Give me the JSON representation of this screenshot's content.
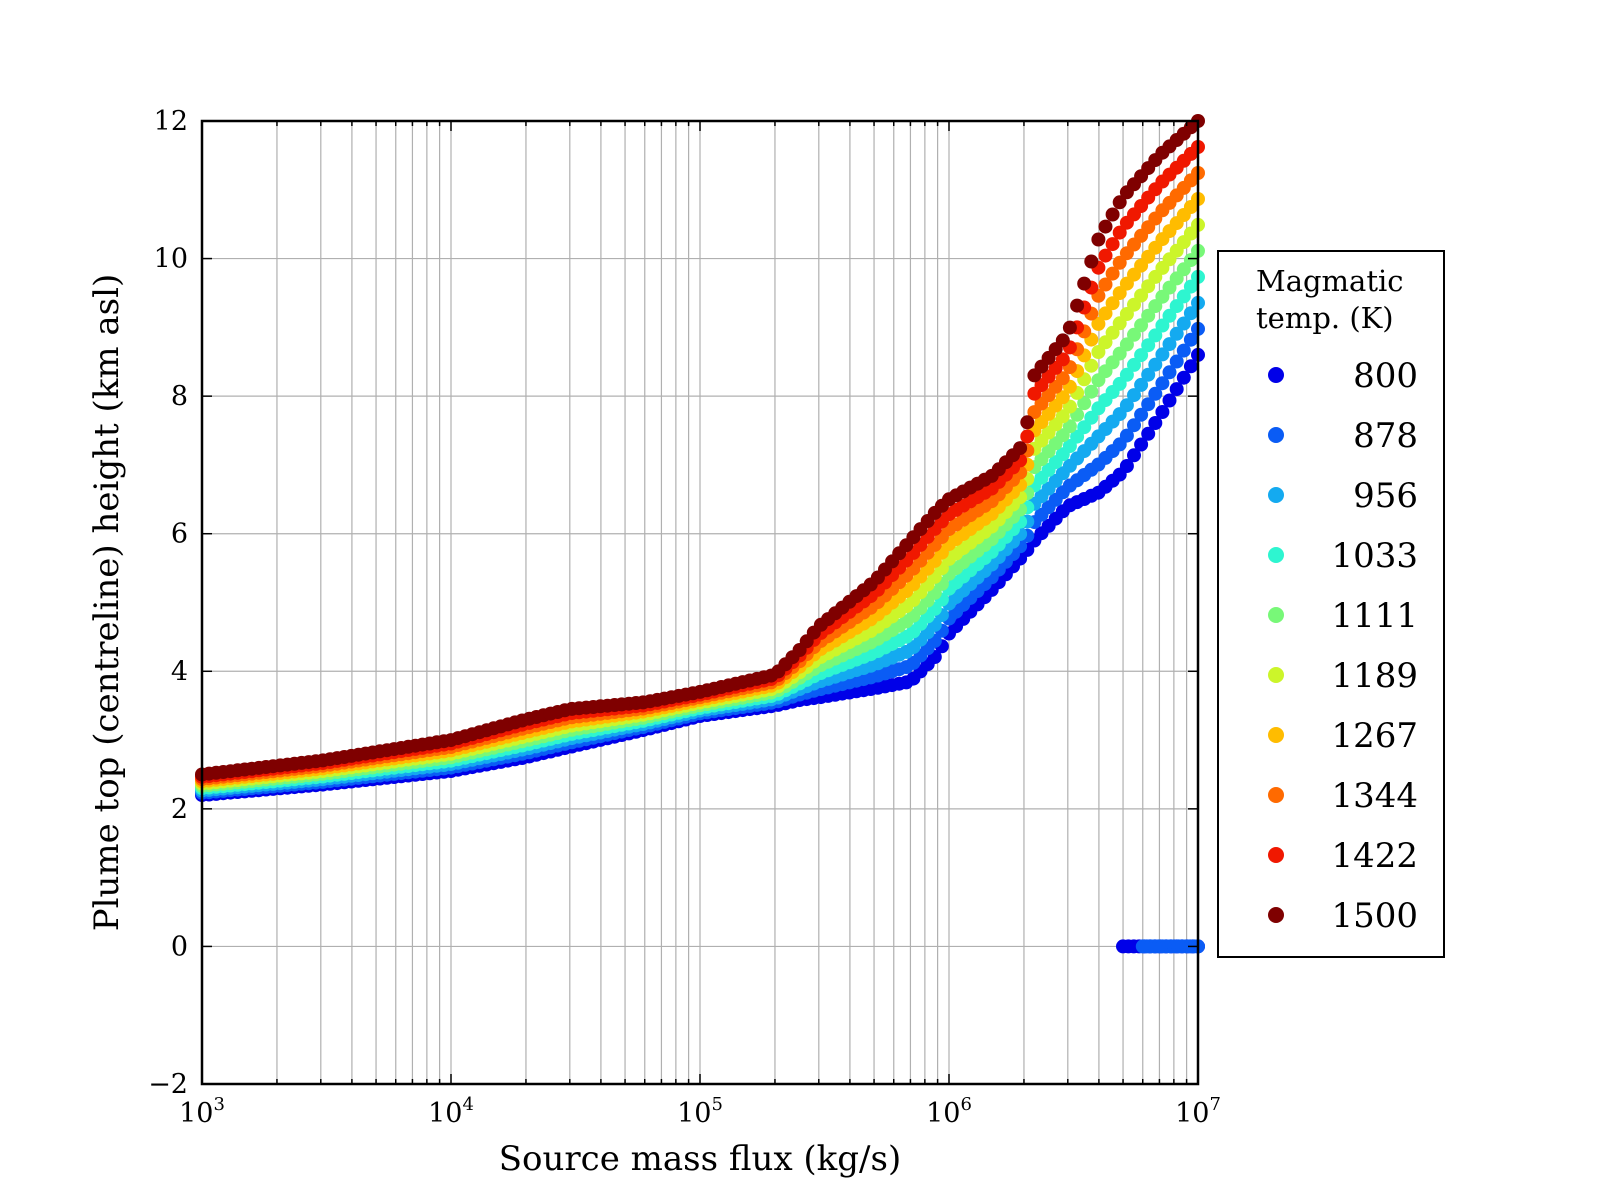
{
  "chart_data": {
    "type": "scatter",
    "xlabel": "Source mass flux (kg/s)",
    "ylabel": "Plume top (centreline) height (km asl)",
    "x_scale": "log",
    "xlim": [
      1000,
      10000000
    ],
    "ylim": [
      -2,
      12
    ],
    "grid": true,
    "x_ticks": [
      {
        "base": "10",
        "exp": "3",
        "value": 1000
      },
      {
        "base": "10",
        "exp": "4",
        "value": 10000
      },
      {
        "base": "10",
        "exp": "5",
        "value": 100000
      },
      {
        "base": "10",
        "exp": "6",
        "value": 1000000
      },
      {
        "base": "10",
        "exp": "7",
        "value": 10000000
      }
    ],
    "y_ticks": [
      "−2",
      "0",
      "2",
      "4",
      "6",
      "8",
      "10",
      "12"
    ],
    "legend": {
      "title_line1": "Magmatic",
      "title_line2": "temp. (K)",
      "placement": "right, outside plot"
    },
    "series": [
      {
        "name": "800",
        "color": "#0000e8"
      },
      {
        "name": "878",
        "color": "#0a5cf5"
      },
      {
        "name": "956",
        "color": "#14aaf0"
      },
      {
        "name": "1033",
        "color": "#2ef5d0"
      },
      {
        "name": "1111",
        "color": "#78f878"
      },
      {
        "name": "1189",
        "color": "#ccf52a"
      },
      {
        "name": "1267",
        "color": "#ffbc00"
      },
      {
        "name": "1344",
        "color": "#ff6a00"
      },
      {
        "name": "1422",
        "color": "#f01800"
      },
      {
        "name": "1500",
        "color": "#7f0000"
      }
    ],
    "curve_points": {
      "x": [
        1000,
        3000,
        10000,
        20000,
        30000,
        60000,
        100000,
        200000,
        250000,
        300000,
        500000,
        700000,
        900000,
        1000000,
        1500000,
        2000000,
        2200000,
        3000000,
        4000000,
        5000000,
        7000000,
        10000000
      ],
      "y_1500": [
        2.5,
        2.7,
        3.0,
        3.3,
        3.45,
        3.55,
        3.7,
        3.95,
        4.3,
        4.65,
        5.3,
        5.9,
        6.35,
        6.5,
        6.85,
        7.3,
        8.3,
        8.9,
        10.3,
        10.9,
        11.5,
        12.0
      ],
      "y_800": [
        2.2,
        2.35,
        2.55,
        2.75,
        2.9,
        3.15,
        3.35,
        3.5,
        3.58,
        3.62,
        3.75,
        3.85,
        4.25,
        4.55,
        5.2,
        5.7,
        5.9,
        6.4,
        6.6,
        6.9,
        7.7,
        8.6
      ]
    },
    "zero_height_points": [
      {
        "x_from": 5000000,
        "x_to": 10000000,
        "y": 0,
        "series": "800"
      },
      {
        "x_from": 6000000,
        "x_to": 10000000,
        "y": 0,
        "series": "878"
      }
    ]
  }
}
